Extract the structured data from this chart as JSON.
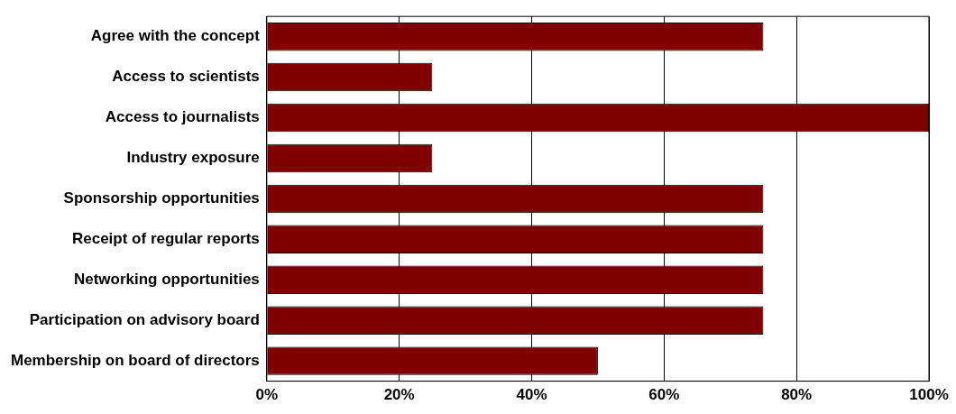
{
  "chart_data": {
    "type": "bar",
    "orientation": "horizontal",
    "categories": [
      "Agree with the concept",
      "Access to scientists",
      "Access to journalists",
      "Industry exposure",
      "Sponsorship opportunities",
      "Receipt of regular reports",
      "Networking opportunities",
      "Participation on advisory board",
      "Membership on board of directors"
    ],
    "values": [
      75,
      25,
      100,
      25,
      75,
      75,
      75,
      75,
      50
    ],
    "color": "#800000",
    "xlim": [
      0,
      100
    ],
    "xticks": [
      {
        "value": 0,
        "label": "0%"
      },
      {
        "value": 20,
        "label": "20%"
      },
      {
        "value": 40,
        "label": "40%"
      },
      {
        "value": 60,
        "label": "60%"
      },
      {
        "value": 80,
        "label": "80%"
      },
      {
        "value": 100,
        "label": "100%"
      }
    ],
    "grid": "x",
    "legend": false
  }
}
